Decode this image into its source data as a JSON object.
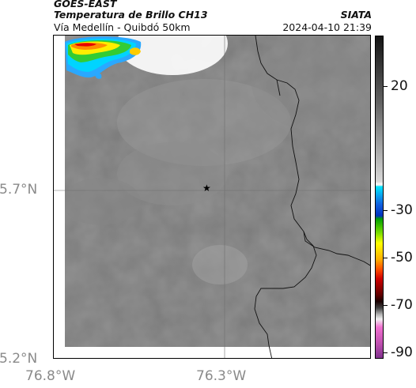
{
  "header": {
    "satellite": "GOES-EAST",
    "product": "Temperatura de Brillo CH13",
    "region": "Vía Medellín - Quibdó 50km",
    "organization": "SIATA",
    "datetime": "2024-04-10 21:39"
  },
  "map": {
    "x_axis_labels": [
      "76.8°W",
      "76.3°W"
    ],
    "y_axis_labels": [
      "5.7°N",
      "5.2°N"
    ],
    "marker": "star-icon"
  },
  "colorbar": {
    "labels": [
      "20",
      "-30",
      "-50",
      "-70",
      "-90"
    ],
    "colors": {
      "top": "#1a1a1a",
      "gray_mid": "#808080",
      "white": "#f2f2f2",
      "cyan": "#00e5ff",
      "blue": "#0033cc",
      "green": "#00b300",
      "yellow": "#ffff00",
      "orange": "#ff8000",
      "red": "#d90000",
      "dark_red": "#300000",
      "pink": "#f06cd0",
      "purple": "#8b3a9b"
    }
  }
}
